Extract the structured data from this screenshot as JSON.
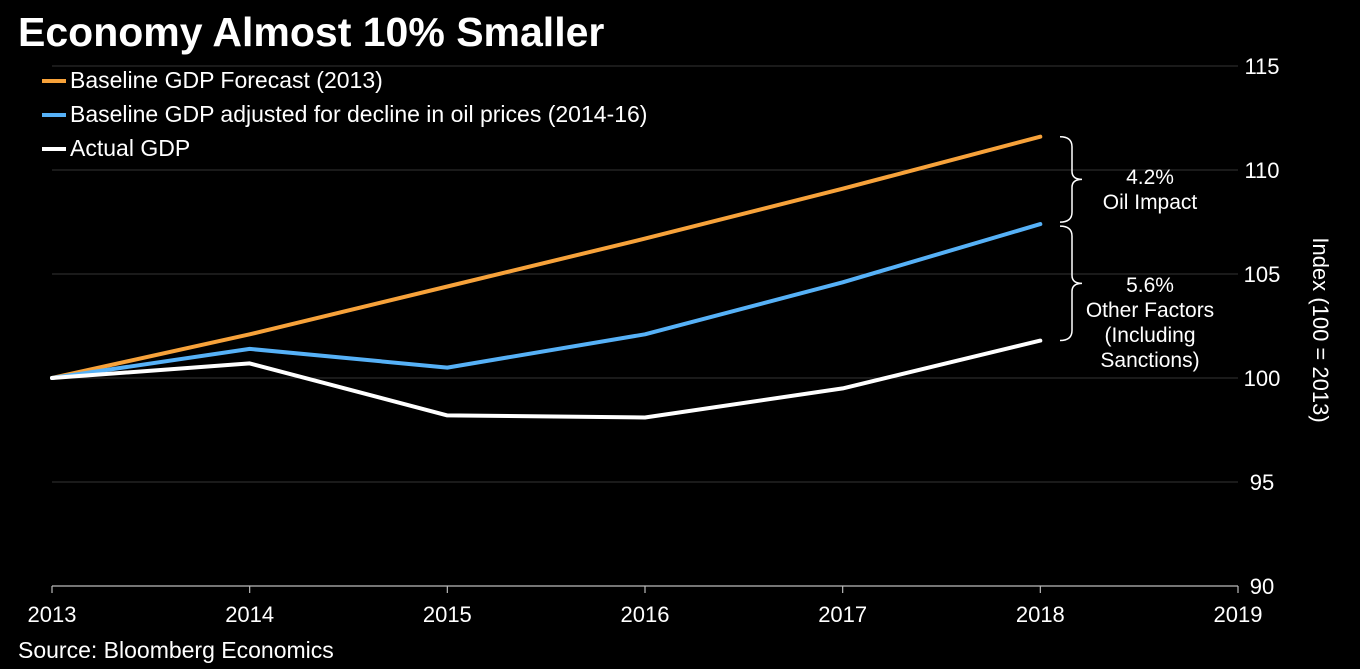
{
  "title": "Economy Almost 10% Smaller",
  "source": "Source: Bloomberg Economics",
  "colors": {
    "background": "#000000",
    "baseline": "#f7a23a",
    "oil_adjusted": "#56b1f7",
    "actual": "#ffffff",
    "grid": "#333333"
  },
  "legend": [
    {
      "label": "Baseline GDP Forecast (2013)",
      "color": "#f7a23a"
    },
    {
      "label": "Baseline GDP adjusted for decline in oil prices (2014-16)",
      "color": "#56b1f7"
    },
    {
      "label": "Actual GDP",
      "color": "#ffffff"
    }
  ],
  "annotations": {
    "oil_value": "4.2%",
    "oil_label": "Oil Impact",
    "other_value": "5.6%",
    "other_label_1": "Other Factors",
    "other_label_2": "(Including",
    "other_label_3": "Sanctions)"
  },
  "chart_data": {
    "type": "line",
    "title": "Economy Almost 10% Smaller",
    "xlabel": "",
    "ylabel": "Index (100 = 2013)",
    "x": [
      2013,
      2014,
      2015,
      2016,
      2017,
      2018
    ],
    "xticks": [
      "2013",
      "2014",
      "2015",
      "2016",
      "2017",
      "2018",
      "2019"
    ],
    "yticks": [
      "90",
      "95",
      "100",
      "105",
      "110",
      "115"
    ],
    "xlim": [
      2013,
      2019
    ],
    "ylim": [
      90,
      115
    ],
    "y_axis_side": "right",
    "grid": true,
    "legend_position": "top-left",
    "series": [
      {
        "name": "Baseline GDP Forecast (2013)",
        "color": "#f7a23a",
        "values": [
          100,
          102.1,
          104.4,
          106.7,
          109.1,
          111.6
        ]
      },
      {
        "name": "Baseline GDP adjusted for decline in oil prices (2014-16)",
        "color": "#56b1f7",
        "values": [
          100,
          101.4,
          100.5,
          102.1,
          104.6,
          107.4
        ]
      },
      {
        "name": "Actual GDP",
        "color": "#ffffff",
        "values": [
          100,
          100.7,
          98.2,
          98.1,
          99.5,
          101.8
        ]
      }
    ]
  }
}
